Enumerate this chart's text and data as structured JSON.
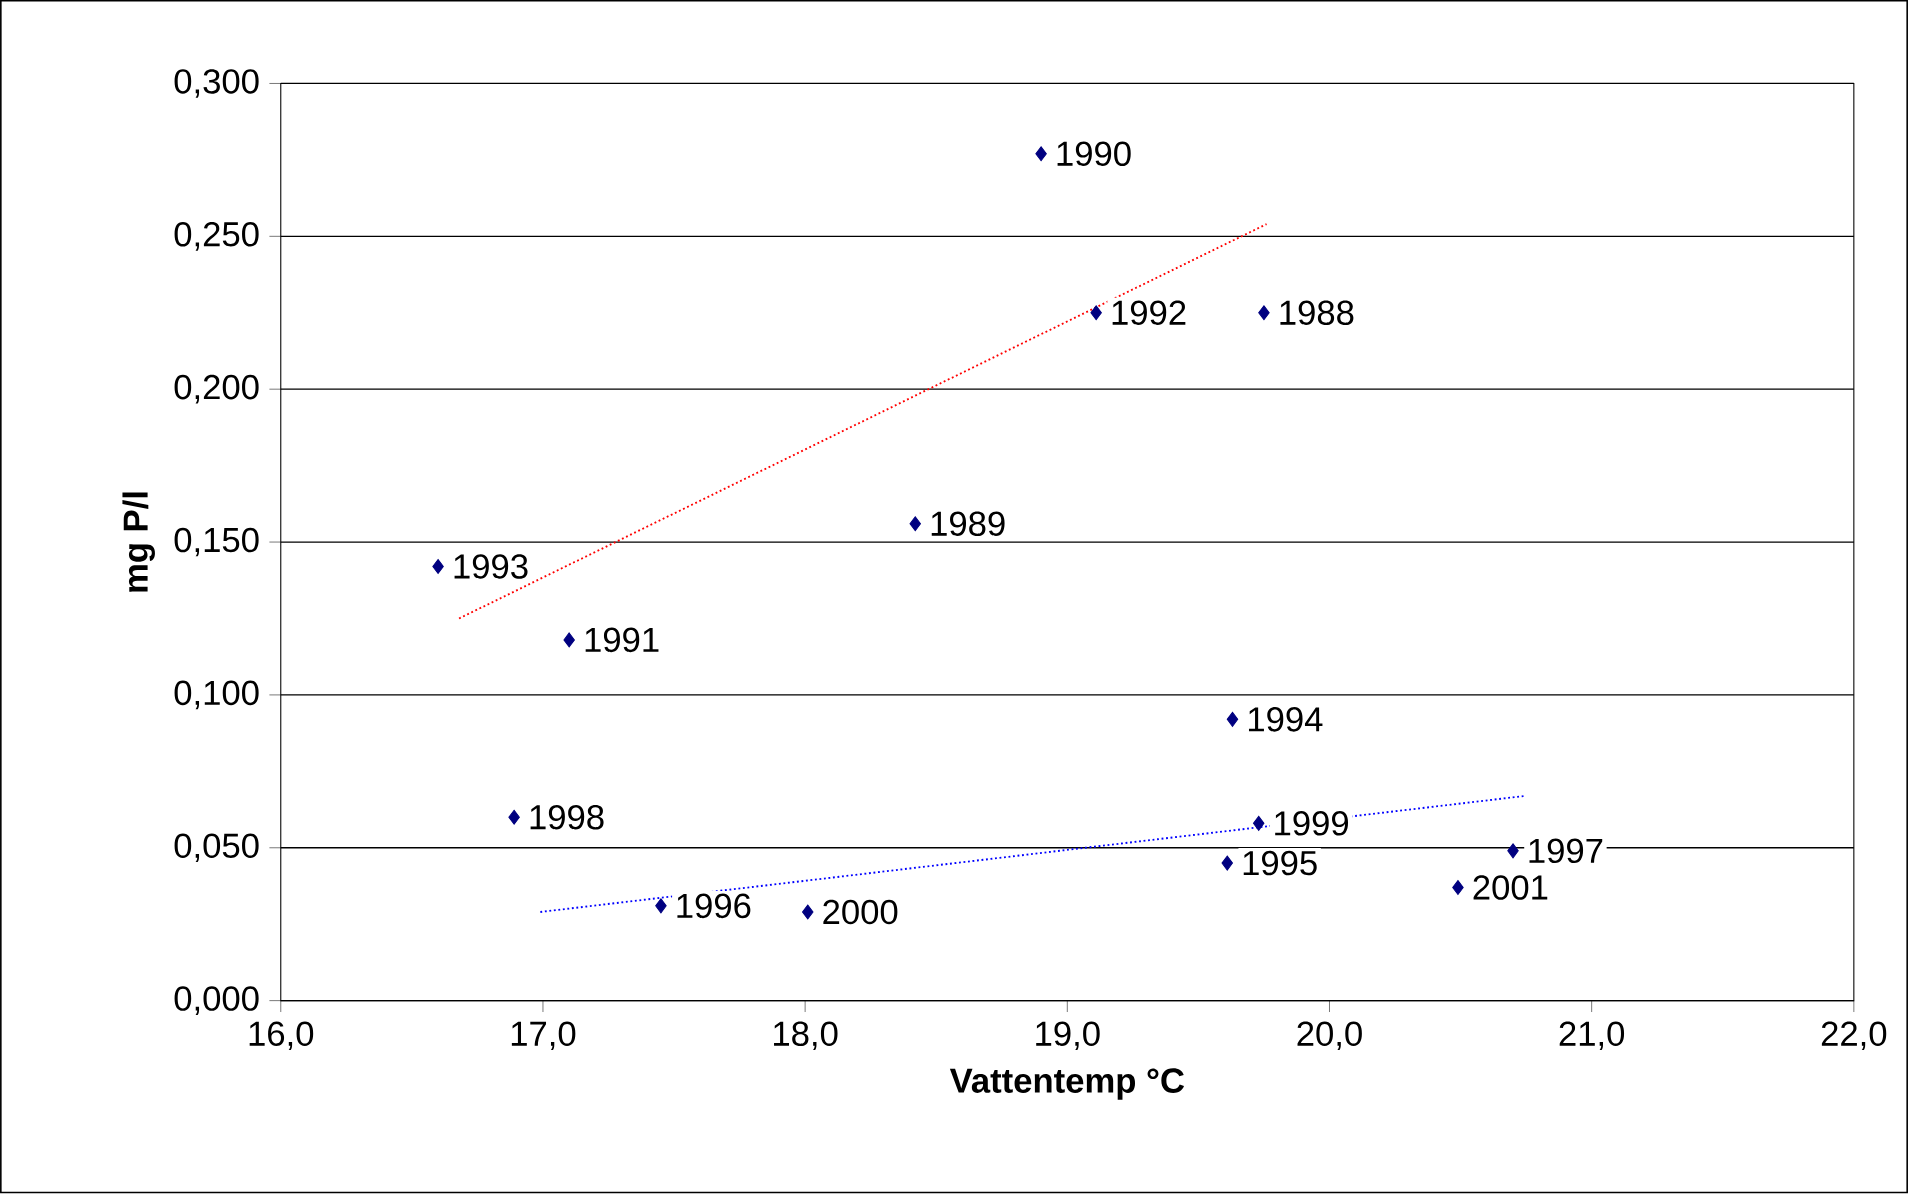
{
  "chart_data": {
    "type": "scatter",
    "xlabel": "Vattentemp °C",
    "ylabel": "mg P/l",
    "xlim": [
      16,
      22
    ],
    "ylim": [
      0,
      0.3
    ],
    "xticks": [
      {
        "value": 16,
        "label": "16,0"
      },
      {
        "value": 17,
        "label": "17,0"
      },
      {
        "value": 18,
        "label": "18,0"
      },
      {
        "value": 19,
        "label": "19,0"
      },
      {
        "value": 20,
        "label": "20,0"
      },
      {
        "value": 21,
        "label": "21,0"
      },
      {
        "value": 22,
        "label": "22,0"
      }
    ],
    "yticks": [
      {
        "value": 0,
        "label": "0,000"
      },
      {
        "value": 0.05,
        "label": "0,050"
      },
      {
        "value": 0.1,
        "label": "0,100"
      },
      {
        "value": 0.15,
        "label": "0,150"
      },
      {
        "value": 0.2,
        "label": "0,200"
      },
      {
        "value": 0.25,
        "label": "0,250"
      },
      {
        "value": 0.3,
        "label": "0,300"
      }
    ],
    "grid": "y",
    "series": [
      {
        "color": "#000080",
        "marker": "diamond",
        "x": [
          18.9,
          19.11,
          19.75,
          18.42,
          16.6,
          17.1,
          19.63,
          16.89,
          19.73,
          19.61,
          20.7,
          20.49,
          17.45,
          18.01
        ],
        "values": [
          0.277,
          0.225,
          0.225,
          0.156,
          0.142,
          0.118,
          0.092,
          0.06,
          0.058,
          0.045,
          0.049,
          0.037,
          0.031,
          0.029
        ]
      },
      {
        "type": "line",
        "marker": "none",
        "line_style": "dotted",
        "color": "#ff0000",
        "x": [
          16.68,
          19.76
        ],
        "values": [
          0.125,
          0.254
        ]
      },
      {
        "type": "line",
        "marker": "none",
        "line_style": "dotted",
        "color": "#0000ff",
        "x": [
          16.99,
          20.75
        ],
        "values": [
          0.029,
          0.067
        ]
      }
    ],
    "annotations": [
      {
        "text": "1990",
        "x": 18.9,
        "y": 0.277
      },
      {
        "text": "1992",
        "x": 19.11,
        "y": 0.225
      },
      {
        "text": "1988",
        "x": 19.75,
        "y": 0.225
      },
      {
        "text": "1989",
        "x": 18.42,
        "y": 0.156
      },
      {
        "text": "1993",
        "x": 16.6,
        "y": 0.142
      },
      {
        "text": "1991",
        "x": 17.1,
        "y": 0.118
      },
      {
        "text": "1994",
        "x": 19.63,
        "y": 0.092
      },
      {
        "text": "1998",
        "x": 16.89,
        "y": 0.06
      },
      {
        "text": "1999",
        "x": 19.73,
        "y": 0.058
      },
      {
        "text": "1995",
        "x": 19.61,
        "y": 0.045
      },
      {
        "text": "1997",
        "x": 20.7,
        "y": 0.049
      },
      {
        "text": "2001",
        "x": 20.49,
        "y": 0.037
      },
      {
        "text": "1996",
        "x": 17.45,
        "y": 0.031
      },
      {
        "text": "2000",
        "x": 18.01,
        "y": 0.029
      }
    ]
  }
}
